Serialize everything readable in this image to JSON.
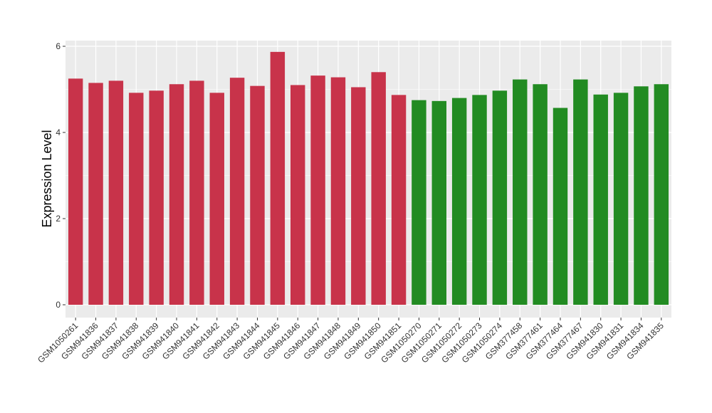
{
  "chart_data": {
    "type": "bar",
    "title": "",
    "xlabel": "",
    "ylabel": "Expression Level",
    "ylim": [
      0,
      6.1
    ],
    "yticks": [
      0,
      2,
      4,
      6
    ],
    "grid": true,
    "colors": {
      "group1": "#c8334a",
      "group2": "#228b22",
      "panel": "#ebebeb",
      "grid": "#ffffff"
    },
    "categories": [
      "GSM1050261",
      "GSM941836",
      "GSM941837",
      "GSM941838",
      "GSM941839",
      "GSM941840",
      "GSM941841",
      "GSM941842",
      "GSM941843",
      "GSM941844",
      "GSM941845",
      "GSM941846",
      "GSM941847",
      "GSM941848",
      "GSM941849",
      "GSM941850",
      "GSM941851",
      "GSM1050270",
      "GSM1050271",
      "GSM1050272",
      "GSM1050273",
      "GSM1050274",
      "GSM377458",
      "GSM377461",
      "GSM377464",
      "GSM377467",
      "GSM941830",
      "GSM941831",
      "GSM941834",
      "GSM941835"
    ],
    "values": [
      5.25,
      5.15,
      5.2,
      4.92,
      4.97,
      5.12,
      5.2,
      4.92,
      5.27,
      5.08,
      5.87,
      5.1,
      5.32,
      5.28,
      5.05,
      5.4,
      4.87,
      4.75,
      4.73,
      4.8,
      4.87,
      4.97,
      5.23,
      5.12,
      4.57,
      5.23,
      4.88,
      4.92,
      5.07,
      5.12
    ],
    "groups": [
      1,
      1,
      1,
      1,
      1,
      1,
      1,
      1,
      1,
      1,
      1,
      1,
      1,
      1,
      1,
      1,
      1,
      2,
      2,
      2,
      2,
      2,
      2,
      2,
      2,
      2,
      2,
      2,
      2,
      2
    ]
  }
}
